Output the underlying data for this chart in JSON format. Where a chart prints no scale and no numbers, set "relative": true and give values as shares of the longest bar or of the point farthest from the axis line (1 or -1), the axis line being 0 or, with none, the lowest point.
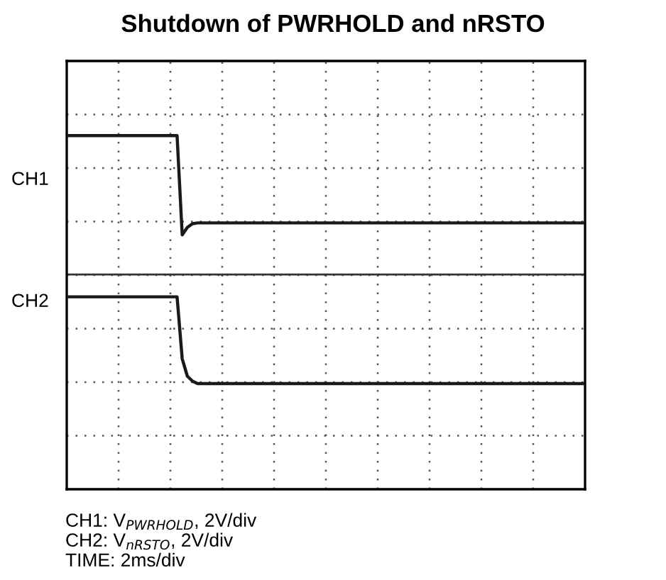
{
  "chart_data": {
    "type": "line",
    "title": "Shutdown of PWRHOLD and nRSTO",
    "relative": true,
    "grid": true,
    "legend": false,
    "categories": [
      null,
      null,
      null,
      null,
      null,
      null,
      null,
      null,
      null,
      null,
      null,
      null,
      null,
      null,
      null,
      null,
      null,
      null,
      null,
      null,
      null,
      null,
      null,
      null,
      null,
      null,
      null,
      null,
      null,
      null,
      null,
      null,
      null,
      null,
      null,
      null,
      null,
      null,
      null,
      null,
      null,
      null,
      null,
      null,
      null,
      null,
      null,
      null,
      null,
      null,
      null,
      null,
      null,
      null,
      null,
      null,
      null,
      null,
      null,
      null,
      null,
      null,
      null,
      null,
      null,
      null,
      null,
      null,
      null,
      null,
      null,
      null,
      null,
      null,
      null,
      null,
      null,
      null,
      null,
      null,
      null,
      null,
      null,
      null,
      null,
      null,
      null,
      null,
      null,
      null,
      null,
      null,
      null,
      null,
      null,
      null,
      null,
      null,
      null,
      null,
      null
    ],
    "series": [
      {
        "color": "#1a1a1a",
        "values": [
          1,
          1,
          1,
          1,
          1,
          1,
          1,
          1,
          1,
          1,
          1,
          1,
          1,
          1,
          1,
          1,
          1,
          1,
          1,
          1,
          1,
          1,
          0.6,
          0.63,
          0.645,
          0.648,
          0.648,
          0.648,
          0.648,
          0.648,
          0.648,
          0.648,
          0.648,
          0.648,
          0.648,
          0.648,
          0.648,
          0.648,
          0.648,
          0.648,
          0.648,
          0.648,
          0.648,
          0.648,
          0.648,
          0.648,
          0.648,
          0.648,
          0.648,
          0.648,
          0.648,
          0.648,
          0.648,
          0.648,
          0.648,
          0.648,
          0.648,
          0.648,
          0.648,
          0.648,
          0.648,
          0.648,
          0.648,
          0.648,
          0.648,
          0.648,
          0.648,
          0.648,
          0.648,
          0.648,
          0.648,
          0.648,
          0.648,
          0.648,
          0.648,
          0.648,
          0.648,
          0.648,
          0.648,
          0.648,
          0.648,
          0.648,
          0.648,
          0.648,
          0.648,
          0.648,
          0.648,
          0.648,
          0.648,
          0.648,
          0.648,
          0.648,
          0.648,
          0.648,
          0.648,
          0.648,
          0.648,
          0.648,
          0.648,
          0.648,
          0.648
        ]
      },
      {
        "color": "#1a1a1a",
        "values": [
          0.35,
          0.35,
          0.35,
          0.35,
          0.35,
          0.35,
          0.35,
          0.35,
          0.35,
          0.35,
          0.35,
          0.35,
          0.35,
          0.35,
          0.35,
          0.35,
          0.35,
          0.35,
          0.35,
          0.35,
          0.35,
          0.35,
          0.1,
          0.03,
          0.01,
          0,
          0,
          0,
          0,
          0,
          0,
          0,
          0,
          0,
          0,
          0,
          0,
          0,
          0,
          0,
          0,
          0,
          0,
          0,
          0,
          0,
          0,
          0,
          0,
          0,
          0,
          0,
          0,
          0,
          0,
          0,
          0,
          0,
          0,
          0,
          0,
          0,
          0,
          0,
          0,
          0,
          0,
          0,
          0,
          0,
          0,
          0,
          0,
          0,
          0,
          0,
          0,
          0,
          0,
          0,
          0,
          0,
          0,
          0,
          0,
          0,
          0,
          0,
          0,
          0,
          0,
          0,
          0,
          0,
          0,
          0,
          0,
          0,
          0,
          0,
          0
        ]
      }
    ],
    "ref_lines": [
      {
        "axis": "y",
        "value": 0.44,
        "color": "#333333",
        "line_style": "solid"
      }
    ],
    "annotations": [
      "CH1",
      "CH2",
      "CH1: V$_{PWRHOLD}$, 2V/div",
      "CH2: V$_{nRSTO}$, 2V/div",
      "TIME: 2ms/div"
    ]
  }
}
